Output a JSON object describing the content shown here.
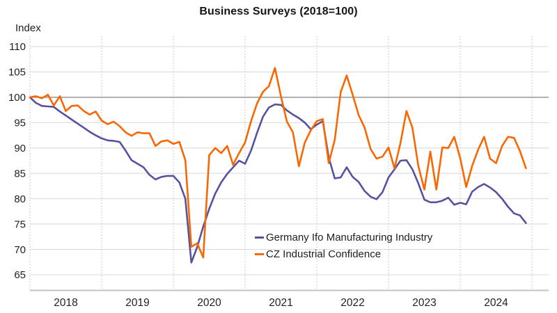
{
  "title": "Business Surveys (2018=100)",
  "y_axis": {
    "label": "Index",
    "ticks": [
      110,
      105,
      100,
      95,
      90,
      85,
      80,
      75,
      70,
      65
    ],
    "min": 65,
    "max": 110,
    "reference_value": 100
  },
  "x_axis": {
    "tick_labels": [
      "2018",
      "2019",
      "2020",
      "2021",
      "2022",
      "2023",
      "2024"
    ]
  },
  "colors": {
    "germany_ifo": "#56529E",
    "cz_confidence": "#F96702",
    "gridline": "#DBDBDB",
    "reference_line": "#808080",
    "dotted_gridline": "#C8C8C8",
    "axis_line": "#C3C3C3",
    "text": "#1F1F1F",
    "title_text": "#151515"
  },
  "chart_data": {
    "type": "line",
    "title": "Business Surveys (2018=100)",
    "xlabel": "",
    "ylabel": "Index",
    "ylim": [
      65,
      110
    ],
    "x_range": {
      "start": "2018-01",
      "end": "2024-12",
      "frequency": "monthly"
    },
    "grid": {
      "horizontal": true,
      "vertical_yearly_dotted": true,
      "reference_line_at": 100
    },
    "legend_position": "inside-bottom-center",
    "categories_years": [
      "2018",
      "2019",
      "2020",
      "2021",
      "2022",
      "2023",
      "2024"
    ],
    "series": [
      {
        "name": "Germany Ifo Manufacturing Industry",
        "color": "#56529E",
        "values": [
          100.0,
          98.9,
          98.3,
          98.2,
          98.1,
          97.2,
          96.4,
          95.6,
          94.8,
          94.0,
          93.2,
          92.5,
          91.9,
          91.5,
          91.4,
          91.2,
          89.5,
          87.6,
          86.9,
          86.2,
          84.7,
          83.8,
          84.3,
          84.5,
          84.5,
          83.2,
          80.0,
          67.4,
          70.5,
          74.5,
          78.0,
          81.0,
          83.2,
          84.9,
          86.2,
          87.5,
          86.9,
          89.5,
          93.0,
          96.2,
          98.0,
          98.6,
          98.5,
          97.4,
          96.6,
          95.9,
          95.0,
          93.7,
          94.6,
          95.3,
          88.1,
          84.0,
          84.2,
          86.2,
          84.3,
          83.3,
          81.5,
          80.4,
          79.9,
          81.3,
          84.2,
          85.8,
          87.5,
          87.6,
          85.8,
          83.0,
          79.8,
          79.3,
          79.3,
          79.6,
          80.2,
          78.8,
          79.2,
          78.9,
          81.4,
          82.3,
          82.9,
          82.2,
          81.3,
          80.0,
          78.4,
          77.1,
          76.7,
          75.2
        ]
      },
      {
        "name": "CZ Industrial Confidence",
        "color": "#F96702",
        "values": [
          100.0,
          100.2,
          99.8,
          100.5,
          98.4,
          100.2,
          97.3,
          98.3,
          98.4,
          97.3,
          96.6,
          97.2,
          95.4,
          94.7,
          95.2,
          94.3,
          93.1,
          92.4,
          93.1,
          92.9,
          92.9,
          90.4,
          91.3,
          91.5,
          90.8,
          91.2,
          87.6,
          70.5,
          71.2,
          68.4,
          88.6,
          90.0,
          89.0,
          90.4,
          86.7,
          89.0,
          91.1,
          95.3,
          98.8,
          101.1,
          102.2,
          105.8,
          100.2,
          95.2,
          93.1,
          86.4,
          91.1,
          93.5,
          95.3,
          95.7,
          87.0,
          91.6,
          101.0,
          104.3,
          100.5,
          96.5,
          94.0,
          89.8,
          87.9,
          88.3,
          90.1,
          86.0,
          91.0,
          97.3,
          94.0,
          86.4,
          81.8,
          89.3,
          81.8,
          90.1,
          90.0,
          92.2,
          88.0,
          82.3,
          86.5,
          89.7,
          92.2,
          87.9,
          87.0,
          90.4,
          92.2,
          92.0,
          89.4,
          86.0
        ]
      }
    ]
  }
}
